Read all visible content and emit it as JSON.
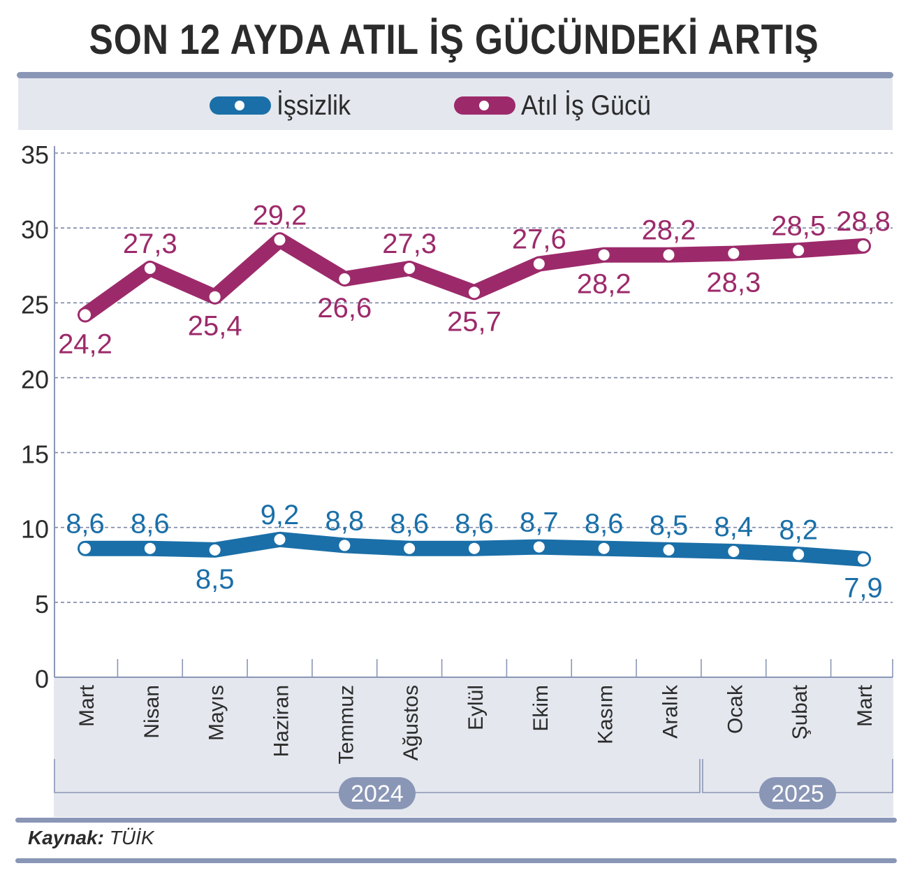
{
  "title": "SON 12 AYDA ATIL İŞ GÜCÜNDEKİ ARTIŞ",
  "legend": [
    {
      "label": "İşsizlik",
      "color": "#1a6fa8"
    },
    {
      "label": "Atıl İş Gücü",
      "color": "#9c2a6a"
    }
  ],
  "source": {
    "label": "Kaynak:",
    "value": "TÜİK"
  },
  "chart_data": {
    "type": "line",
    "categories": [
      "Mart",
      "Nisan",
      "Mayıs",
      "Haziran",
      "Temmuz",
      "Ağustos",
      "Eylül",
      "Ekim",
      "Kasım",
      "Aralık",
      "Ocak",
      "Şubat",
      "Mart"
    ],
    "year_groups": [
      {
        "label": "2024",
        "start": 0,
        "end": 9
      },
      {
        "label": "2025",
        "start": 10,
        "end": 12
      }
    ],
    "series": [
      {
        "name": "Atıl İş Gücü",
        "color": "#9c2a6a",
        "values": [
          24.2,
          27.3,
          25.4,
          29.2,
          26.6,
          27.3,
          25.7,
          27.6,
          28.2,
          28.2,
          28.3,
          28.5,
          28.8
        ],
        "labels": [
          "24,2",
          "27,3",
          "25,4",
          "29,2",
          "26,6",
          "27,3",
          "25,7",
          "27,6",
          "28,2",
          "28,2",
          "28,3",
          "28,5",
          "28,8"
        ],
        "label_pos": [
          "below",
          "above",
          "below",
          "above",
          "below",
          "above",
          "below",
          "above",
          "below",
          "above",
          "below",
          "above",
          "above"
        ]
      },
      {
        "name": "İşsizlik",
        "color": "#1a6fa8",
        "values": [
          8.6,
          8.6,
          8.5,
          9.2,
          8.8,
          8.6,
          8.6,
          8.7,
          8.6,
          8.5,
          8.4,
          8.2,
          7.9
        ],
        "labels": [
          "8,6",
          "8,6",
          "8,5",
          "9,2",
          "8,8",
          "8,6",
          "8,6",
          "8,7",
          "8,6",
          "8,5",
          "8,4",
          "8,2",
          "7,9"
        ],
        "label_pos": [
          "above",
          "above",
          "below",
          "above",
          "above",
          "above",
          "above",
          "above",
          "above",
          "above",
          "above",
          "above",
          "below"
        ]
      }
    ],
    "yticks": [
      "0",
      "5",
      "10",
      "15",
      "20",
      "25",
      "30",
      "35"
    ],
    "ylim": [
      0,
      35
    ],
    "grid": true,
    "legend_position": "top"
  }
}
